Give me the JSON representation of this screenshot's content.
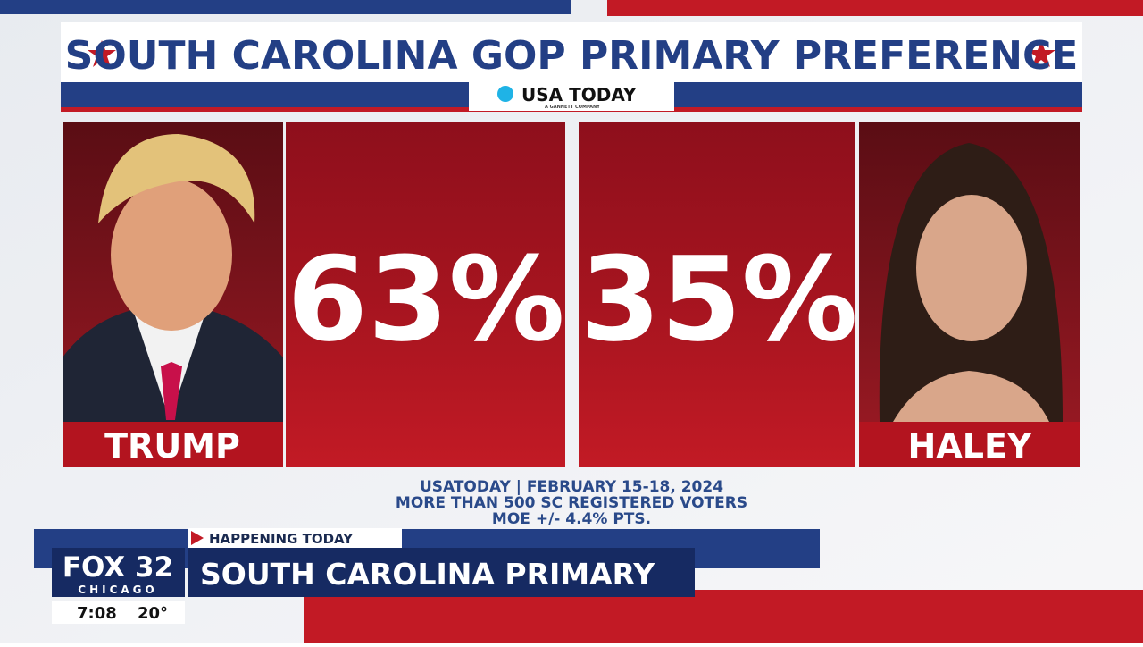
{
  "header": {
    "title": "SOUTH CAROLINA GOP PRIMARY PREFERENCE",
    "logo": "USA TODAY",
    "logo_sub": "A GANNETT COMPANY"
  },
  "candidates": [
    {
      "name": "TRUMP",
      "share": "63%"
    },
    {
      "name": "HALEY",
      "share": "35%"
    }
  ],
  "source": [
    "USATODAY | FEBRUARY 15-18, 2024",
    "MORE THAN 500 SC REGISTERED VOTERS",
    "MOE +/- 4.4% PTS."
  ],
  "lower_third": {
    "kicker": "HAPPENING TODAY",
    "headline": "SOUTH CAROLINA PRIMARY"
  },
  "station": {
    "name": "FOX 32",
    "city": "CHICAGO",
    "time": "7:08",
    "temperature": "20°"
  }
}
